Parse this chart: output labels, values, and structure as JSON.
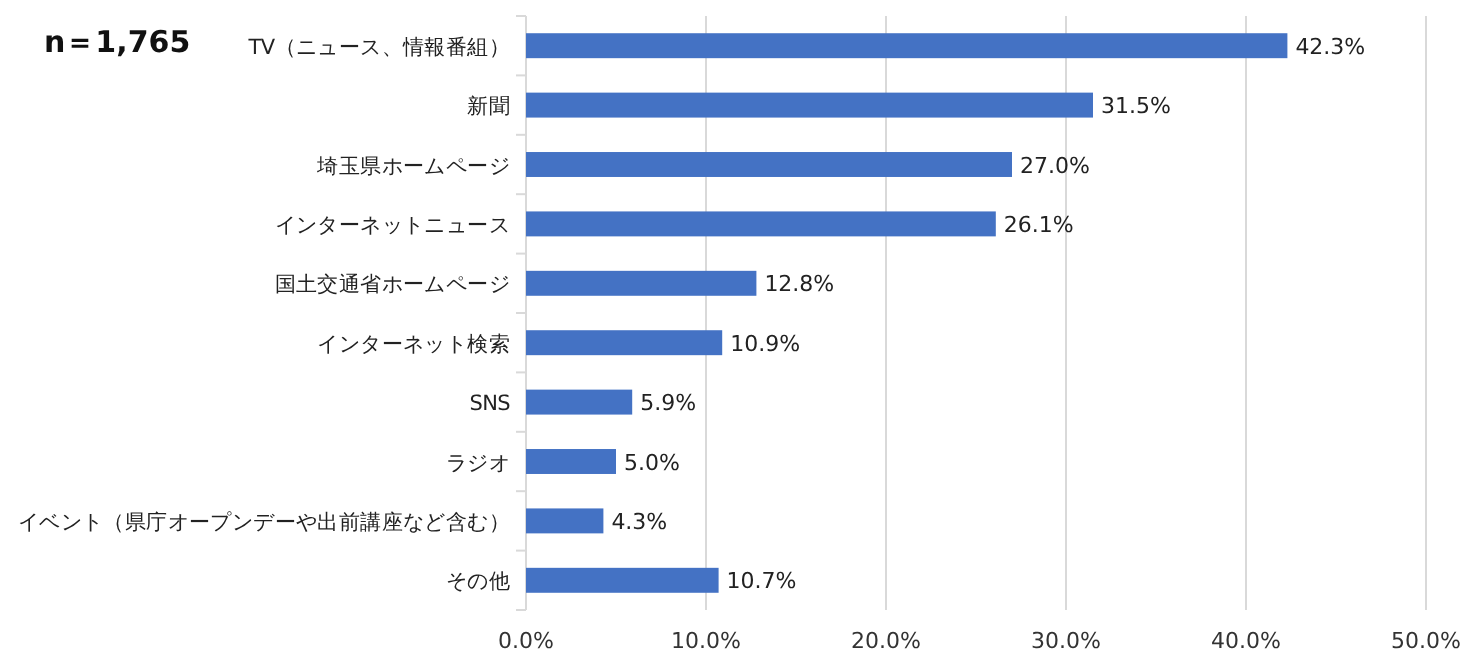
{
  "chart_data": {
    "type": "bar",
    "orientation": "horizontal",
    "categories": [
      "TV（ニュース、情報番組）",
      "新聞",
      "埼玉県ホームページ",
      "インターネットニュース",
      "国土交通省ホームページ",
      "インターネット検索",
      "SNS",
      "ラジオ",
      "イベント（県庁オープンデーや出前講座など含む）",
      "その他"
    ],
    "values": [
      42.3,
      31.5,
      27.0,
      26.1,
      12.8,
      10.9,
      5.9,
      5.0,
      4.3,
      10.7
    ],
    "value_labels": [
      "42.3%",
      "31.5%",
      "27.0%",
      "26.1%",
      "12.8%",
      "10.9%",
      "5.9%",
      "5.0%",
      "4.3%",
      "10.7%"
    ],
    "color": "#4472c4",
    "xlim": [
      0,
      50
    ],
    "xticks": [
      {
        "value": 0,
        "label": "0.0%"
      },
      {
        "value": 10,
        "label": "10.0%"
      },
      {
        "value": 20,
        "label": "20.0%"
      },
      {
        "value": 30,
        "label": "30.0%"
      },
      {
        "value": 40,
        "label": "40.0%"
      },
      {
        "value": 50,
        "label": "50.0%"
      }
    ],
    "grid": "x",
    "annotations": [
      "n＝1,765"
    ]
  }
}
